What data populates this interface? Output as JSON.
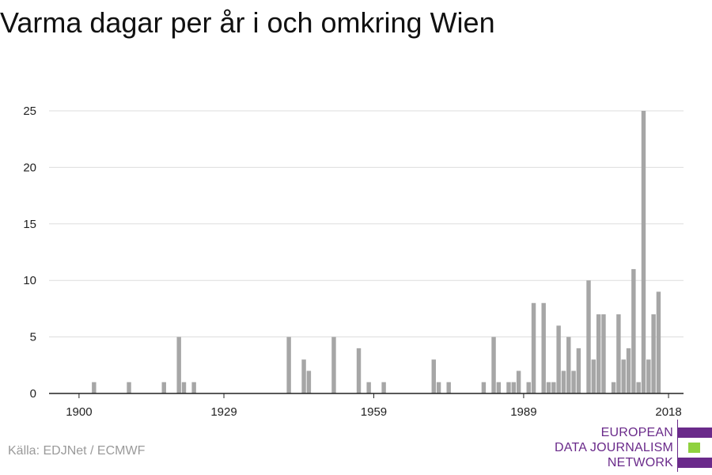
{
  "title": "Varma dagar per år i och omkring Wien",
  "source": "Källa: EDJNet / ECMWF",
  "brand": {
    "lines": [
      "EUROPEAN",
      "DATA JOURNALISM",
      "NETWORK"
    ]
  },
  "colors": {
    "bar": "#a6a6a6",
    "grid": "#dddddd",
    "axis": "#222222",
    "brand_purple": "#6a2a8a",
    "brand_green": "#8fd13f"
  },
  "chart_data": {
    "type": "bar",
    "xlabel": "",
    "ylabel": "",
    "xlim": [
      1894,
      2021
    ],
    "ylim": [
      0,
      25
    ],
    "yticks": [
      0,
      5,
      10,
      15,
      20,
      25
    ],
    "xticks": [
      1900,
      1929,
      1959,
      1989,
      2018
    ],
    "grid": true,
    "legend": "none",
    "x": [
      1903,
      1910,
      1917,
      1920,
      1921,
      1923,
      1942,
      1945,
      1946,
      1951,
      1956,
      1958,
      1961,
      1971,
      1972,
      1974,
      1981,
      1983,
      1984,
      1986,
      1987,
      1988,
      1990,
      1991,
      1993,
      1994,
      1995,
      1996,
      1997,
      1998,
      1999,
      2000,
      2002,
      2003,
      2004,
      2005,
      2007,
      2008,
      2009,
      2010,
      2011,
      2012,
      2013,
      2014,
      2015,
      2016,
      2017
    ],
    "values": [
      1,
      1,
      1,
      5,
      1,
      1,
      5,
      3,
      2,
      5,
      4,
      1,
      1,
      3,
      1,
      1,
      1,
      5,
      1,
      1,
      1,
      2,
      1,
      8,
      8,
      1,
      1,
      6,
      2,
      5,
      2,
      4,
      10,
      3,
      7,
      7,
      1,
      7,
      3,
      4,
      11,
      1,
      25,
      3,
      7,
      9,
      0
    ]
  }
}
